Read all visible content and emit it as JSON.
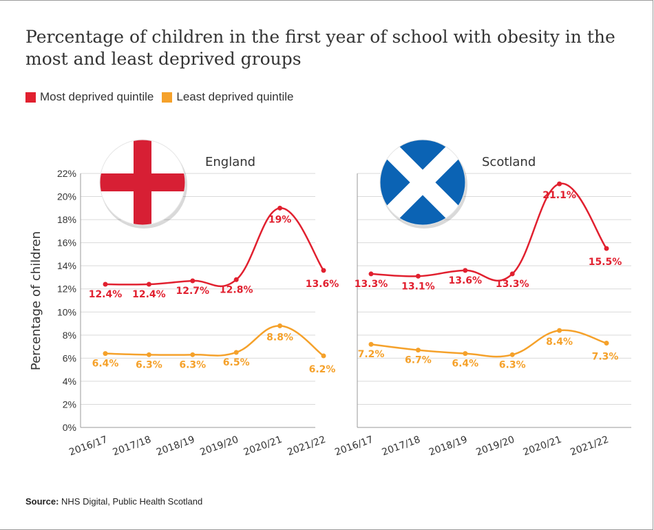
{
  "title": "Percentage of children in the first year of school with obesity in the most and least deprived groups",
  "legend": {
    "most_label": "Most deprived quintile",
    "least_label": "Least deprived quintile"
  },
  "colors": {
    "most": "#e1202f",
    "least": "#f5a12a",
    "grid": "#d9d9d9",
    "axis": "#555555"
  },
  "source": {
    "label": "Source:",
    "text": "NHS Digital, Public Health Scotland"
  },
  "chart_data": [
    {
      "type": "line",
      "title": "England",
      "flag_icon": "england-flag-icon",
      "ylabel": "Percentage of children",
      "ylim": [
        0,
        22
      ],
      "yticks": [
        "0%",
        "2%",
        "4%",
        "6%",
        "8%",
        "10%",
        "12%",
        "14%",
        "16%",
        "18%",
        "20%",
        "22%"
      ],
      "categories": [
        "2016/17",
        "2017/18",
        "2018/19",
        "2019/20",
        "2020/21",
        "2021/22"
      ],
      "series": [
        {
          "name": "Most deprived quintile",
          "values": [
            12.4,
            12.4,
            12.7,
            12.8,
            19,
            13.6
          ],
          "labels": [
            "12.4%",
            "12.4%",
            "12.7%",
            "12.8%",
            "19%",
            "13.6%"
          ]
        },
        {
          "name": "Least deprived quintile",
          "values": [
            6.4,
            6.3,
            6.3,
            6.5,
            8.8,
            6.2
          ],
          "labels": [
            "6.4%",
            "6.3%",
            "6.3%",
            "6.5%",
            "8.8%",
            "6.2%"
          ]
        }
      ]
    },
    {
      "type": "line",
      "title": "Scotland",
      "flag_icon": "scotland-flag-icon",
      "ylim": [
        0,
        22
      ],
      "categories": [
        "2016/17",
        "2017/18",
        "2018/19",
        "2019/20",
        "2020/21",
        "2021/22"
      ],
      "series": [
        {
          "name": "Most deprived quintile",
          "values": [
            13.3,
            13.1,
            13.6,
            13.3,
            21.1,
            15.5
          ],
          "labels": [
            "13.3%",
            "13.1%",
            "13.6%",
            "13.3%",
            "21.1%",
            "15.5%"
          ]
        },
        {
          "name": "Least deprived quintile",
          "values": [
            7.2,
            6.7,
            6.4,
            6.3,
            8.4,
            7.3
          ],
          "labels": [
            "7.2%",
            "6.7%",
            "6.4%",
            "6.3%",
            "8.4%",
            "7.3%"
          ]
        }
      ]
    }
  ]
}
